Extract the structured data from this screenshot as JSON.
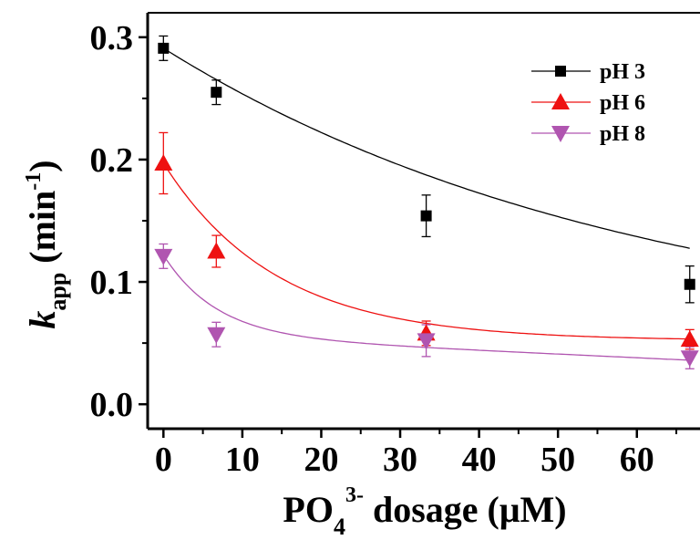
{
  "chart_data": {
    "type": "scatter",
    "x": [
      0,
      6.7,
      33.3,
      66.7
    ],
    "xticks": [
      "0",
      "10",
      "20",
      "30",
      "40",
      "50",
      "60"
    ],
    "yticks": [
      "0.0",
      "0.1",
      "0.2",
      "0.3"
    ],
    "xlim": [
      -2,
      68
    ],
    "ylim": [
      -0.02,
      0.32
    ],
    "xlabel": {
      "main": "PO",
      "sub": "4",
      "sup": "3-",
      "tail": " dosage (μM)"
    },
    "ylabel": {
      "italic": "k",
      "sub": "app",
      "main": " (min",
      "sup": "-1",
      "tail": ")"
    },
    "legend_position": "top-right",
    "grid": false,
    "series": [
      {
        "name": "pH 3",
        "color": "#000000",
        "marker": "square",
        "values": [
          0.291,
          0.255,
          0.154,
          0.098
        ],
        "errors": [
          0.01,
          0.01,
          0.017,
          0.015
        ],
        "fit": {
          "a": 0.245,
          "k": 0.0165,
          "c": 0.046
        }
      },
      {
        "name": "pH 6",
        "color": "#ee1111",
        "marker": "triangle-up",
        "values": [
          0.197,
          0.125,
          0.058,
          0.053
        ],
        "errors": [
          0.025,
          0.013,
          0.01,
          0.008
        ],
        "fit": {
          "a": 0.145,
          "k": 0.07,
          "c": 0.052
        }
      },
      {
        "name": "pH 8",
        "color": "#b055b0",
        "marker": "triangle-down",
        "values": [
          0.121,
          0.057,
          0.052,
          0.038
        ],
        "errors": [
          0.01,
          0.01,
          0.013,
          0.009
        ],
        "fit": {
          "a": 0.066,
          "k": 0.15,
          "c": 0.056,
          "m": -0.0003
        }
      }
    ]
  }
}
